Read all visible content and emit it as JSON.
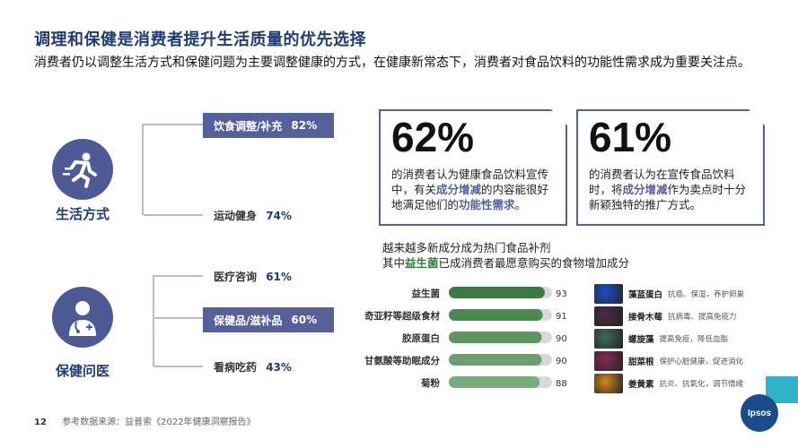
{
  "header": {
    "title": "调理和保健是消费者提升生活质量的优先选择",
    "subtitle": "消费者仍以调整生活方式和保健问题为主要调整健康的方式，在健康新常态下，消费者对食品饮料的功能性需求成为重要关注点。"
  },
  "categories": [
    {
      "label": "生活方式",
      "icon": "running-person-icon",
      "items": [
        {
          "label": "饮食调整/补充",
          "pct": "82%",
          "highlight": true
        },
        {
          "label": "运动健身",
          "pct": "74%",
          "highlight": false
        }
      ]
    },
    {
      "label": "保健问医",
      "icon": "doctor-icon",
      "items": [
        {
          "label": "医疗咨询",
          "pct": "61%",
          "highlight": false
        },
        {
          "label": "保健品/滋补品",
          "pct": "60%",
          "highlight": true
        },
        {
          "label": "看病吃药",
          "pct": "43%",
          "highlight": false
        }
      ]
    }
  ],
  "stats": [
    {
      "value": "62%",
      "text_a": "的消费者认为健康食品饮料宣传中，有关",
      "hl1": "成分增减",
      "text_b": "的内容能很好地满足他们的",
      "hl2": "功能性需求",
      "text_c": "。"
    },
    {
      "value": "61%",
      "text_a": "的消费者认为在宣传食品饮料时，将",
      "hl1": "成分增减",
      "text_b": "作为卖点时十分新颖独特的推广方式。"
    }
  ],
  "bar_section": {
    "heading_line1": "越来越多新成分成为热门食品补剂",
    "heading_line2_a": "其中",
    "heading_line2_hl": "益生菌",
    "heading_line2_b": "已成消费者最愿意购买的食物增加成分"
  },
  "chart_data": {
    "type": "bar",
    "orientation": "horizontal",
    "categories": [
      "益生菌",
      "奇亚籽等超级食材",
      "胶原蛋白",
      "甘氨酸等助眠成分",
      "菊粉"
    ],
    "values": [
      93,
      91,
      90,
      90,
      88
    ],
    "colors": [
      "#3d7a43",
      "#4b8a4f",
      "#5d9561",
      "#6a9f6d",
      "#7aa97c"
    ],
    "track_color": "#d9d9d9"
  },
  "ingredients": [
    {
      "name": "藻蓝蛋白",
      "desc": "抗癌、保湿，养护卵巢",
      "icon": "spirulina-powder-icon",
      "color": "#1d4fd1"
    },
    {
      "name": "接骨木莓",
      "desc": "抗病毒、提高免疫力",
      "icon": "elderberry-icon",
      "color": "#4a2a4c"
    },
    {
      "name": "螺旋藻",
      "desc": "提高免疫，降低血脂",
      "icon": "spirulina-icon",
      "color": "#3f6b5c"
    },
    {
      "name": "甜菜根",
      "desc": "保护心脏健康，促进消化",
      "icon": "beetroot-icon",
      "color": "#8a2a55"
    },
    {
      "name": "姜黄素",
      "desc": "抗炎、抗氧化，调节情绪",
      "icon": "turmeric-icon",
      "color": "#d4861c"
    }
  ],
  "footer": {
    "page": "12",
    "source": "参考数据来源：益普索《2022年健康洞察报告》"
  },
  "logo": {
    "text": "Ipsos"
  }
}
